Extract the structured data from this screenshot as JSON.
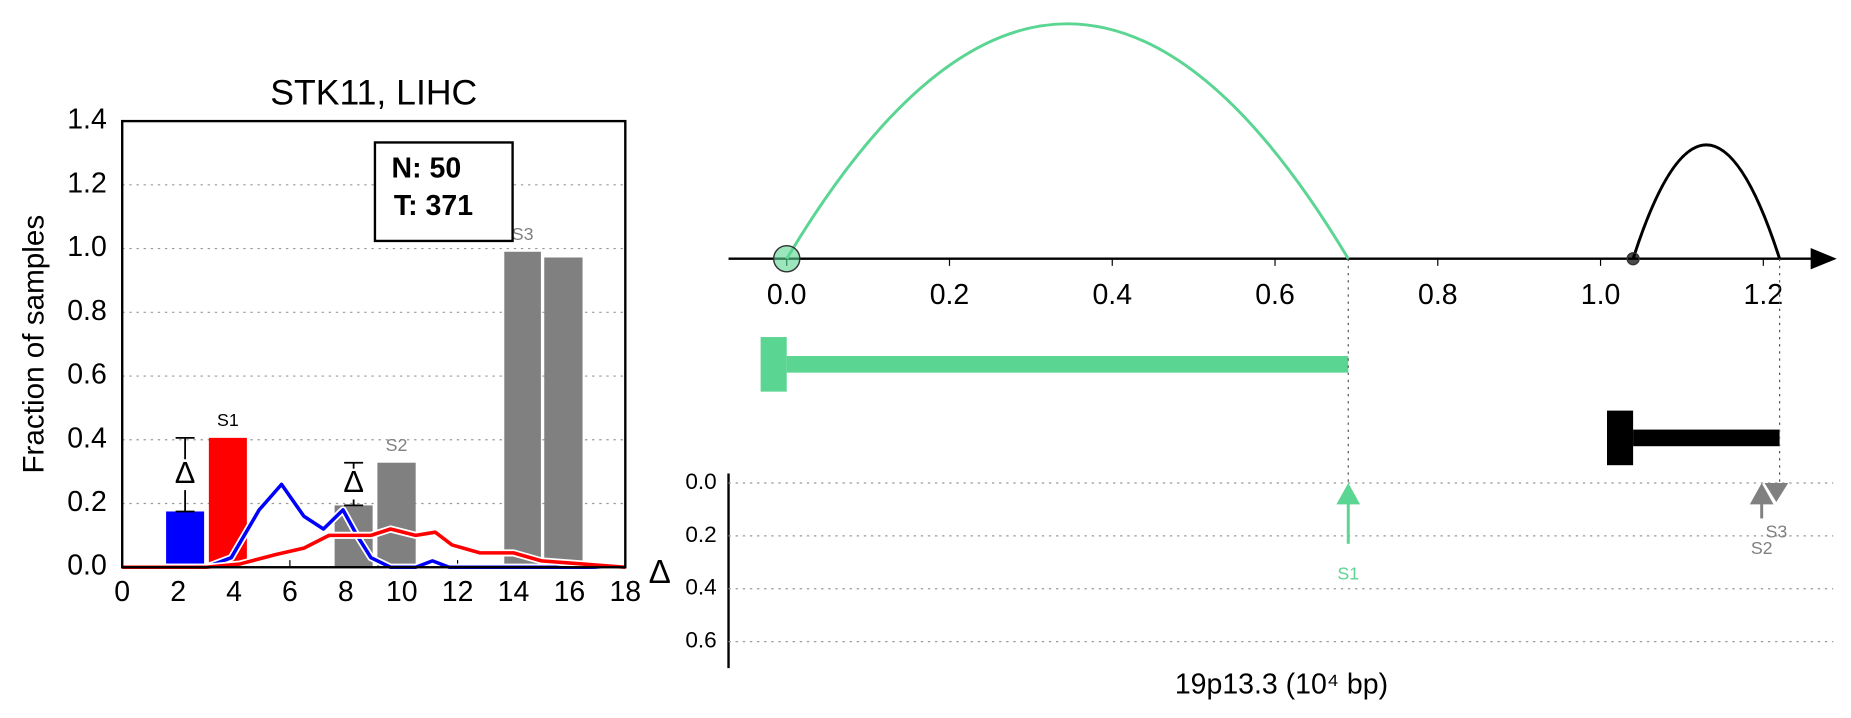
{
  "chart_data": [
    {
      "type": "bar",
      "title": "STK11, LIHC",
      "ylabel": "Fraction of samples",
      "xlim": [
        0,
        18
      ],
      "xticks": [
        0,
        2,
        4,
        6,
        8,
        10,
        12,
        14,
        16,
        18
      ],
      "ylim": [
        0,
        1.4
      ],
      "yticks": [
        {
          "value": 0,
          "label": "0.0"
        },
        0.2,
        0.4,
        0.6,
        0.8,
        {
          "value": 1,
          "label": "1.0"
        },
        1.2,
        1.4
      ],
      "grid": true,
      "counts": [
        "N: 50",
        "T: 371"
      ],
      "bars": {
        "left": [
          1.57,
          3.1,
          7.6,
          9.13,
          13.67,
          15.1
        ],
        "right": [
          2.93,
          4.46,
          8.96,
          10.5,
          14.98,
          16.47
        ],
        "values": [
          0.175,
          0.406,
          0.194,
          0.328,
          0.99,
          0.972
        ],
        "colors": [
          "#0000ff",
          "#ff0000",
          "#808080",
          "#808080",
          "#808080",
          "#808080"
        ],
        "labels": [
          null,
          "S1",
          null,
          "S2",
          "S3",
          null
        ],
        "label_colors": [
          null,
          "#000000",
          null,
          "#808080",
          "#808080",
          null
        ]
      },
      "delta_symbol": "Δ",
      "delta_pairs": [
        [
          0,
          1
        ],
        [
          2,
          3
        ]
      ],
      "series": [
        {
          "color": "#0000ff",
          "x": [
            0,
            1,
            2,
            3,
            3.9,
            4.9,
            5.7,
            6.5,
            7.2,
            7.9,
            8.4,
            8.9,
            9.6,
            10.5,
            11.1,
            11.7,
            12.5,
            14,
            16,
            18
          ],
          "values": [
            0,
            0,
            0,
            0,
            0.03,
            0.18,
            0.26,
            0.16,
            0.12,
            0.18,
            0.1,
            0.03,
            0,
            0,
            0.02,
            0,
            0,
            0,
            0,
            0
          ]
        },
        {
          "color": "#ff0000",
          "x": [
            0,
            3,
            4.2,
            5.5,
            6.5,
            7.4,
            8.2,
            8.9,
            9.6,
            10.5,
            11.2,
            11.8,
            12.8,
            14,
            15,
            16.5,
            18
          ],
          "values": [
            0,
            0,
            0.01,
            0.04,
            0.06,
            0.1,
            0.1,
            0.1,
            0.12,
            0.1,
            0.11,
            0.07,
            0.045,
            0.045,
            0.02,
            0.01,
            0
          ]
        }
      ]
    },
    {
      "type": "genome",
      "xlabel": "19p13.3 (10⁴ bp)",
      "xlim": [
        -0.0715,
        1.264
      ],
      "xticks": [
        {
          "value": 0,
          "label": "0.0"
        },
        0.2,
        0.4,
        0.6,
        0.8,
        {
          "value": 1,
          "label": "1.0"
        },
        1.2
      ],
      "ylabel": "Δ",
      "ylim": [
        0,
        0.7
      ],
      "yticks": [
        {
          "value": 0,
          "label": "0.0"
        },
        0.2,
        0.4,
        0.6
      ],
      "genes": [
        {
          "start": 0,
          "end": 0.69,
          "color": "#5ad592"
        },
        {
          "start": 1.04,
          "end": 1.22,
          "color": "#000000"
        }
      ],
      "arrows": [
        {
          "label": "S1",
          "x": 0.69,
          "value": 0.23,
          "direction": "up",
          "color": "#5ad592"
        },
        {
          "label": "S2",
          "x": 1.198,
          "value": 0.134,
          "direction": "up",
          "color": "#808080"
        },
        {
          "label": "S3",
          "x": 1.216,
          "value": 0.018,
          "direction": "down",
          "color": "#808080"
        }
      ]
    }
  ]
}
